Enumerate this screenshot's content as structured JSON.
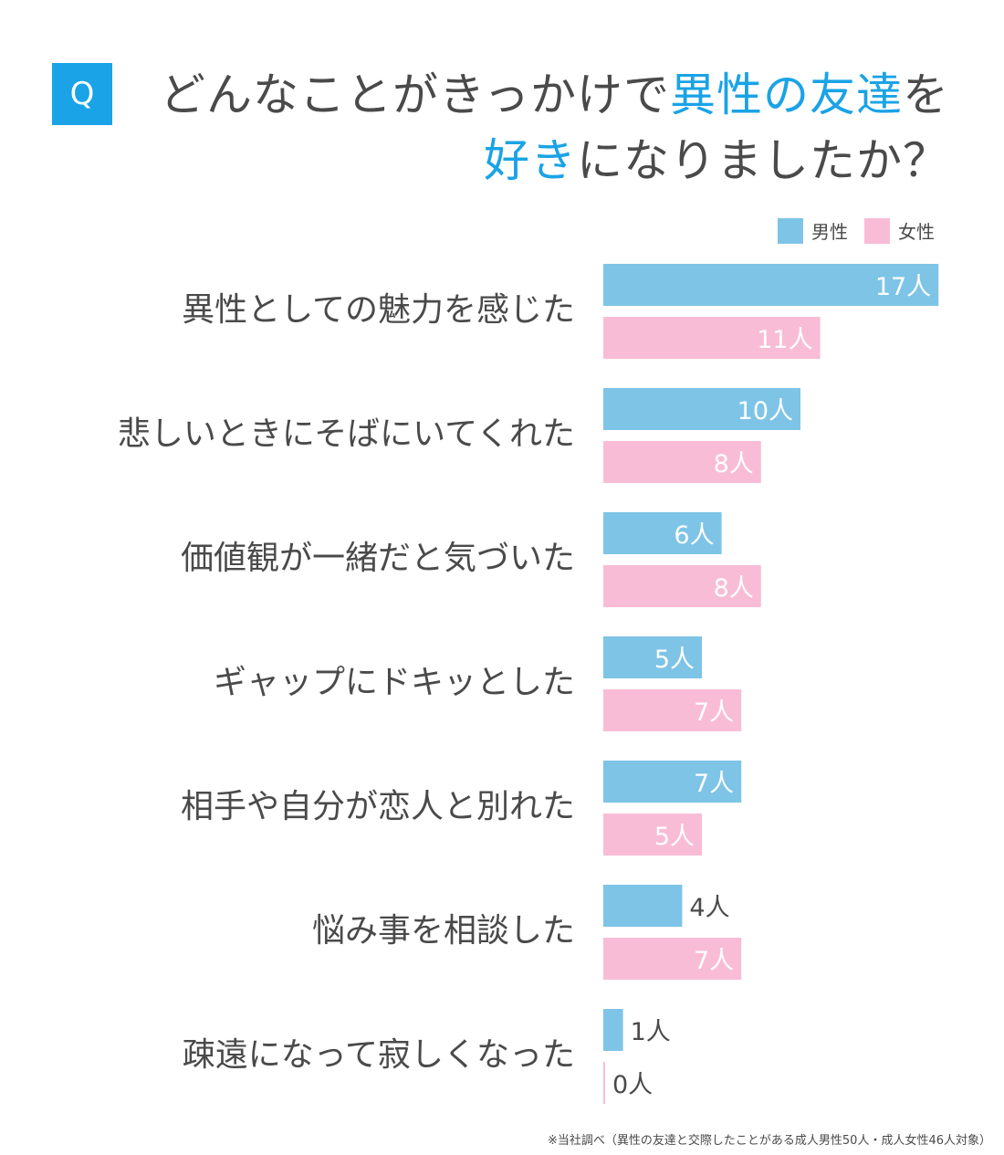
{
  "title": {
    "badge": "Q",
    "line1_plain": "どんなことがきっかけで",
    "line1_highlight": "異性の友達",
    "line1_end": "を",
    "line2_highlight": "好き",
    "line2_plain": "になりましたか？",
    "highlight_color": "#1aa3e6"
  },
  "chart_data": {
    "type": "bar",
    "orientation": "horizontal",
    "categories": [
      "異性としての魅力を感じた",
      "悲しいときにそばにいてくれた",
      "価値観が一緒だと気づいた",
      "ギャップにドキッとした",
      "相手や自分が恋人と別れた",
      "悩み事を相談した",
      "疎遠になって寂しくなった"
    ],
    "series": [
      {
        "name": "男性",
        "values": [
          17,
          10,
          6,
          5,
          7,
          4,
          1
        ],
        "color": "#7ec4e6"
      },
      {
        "name": "女性",
        "values": [
          11,
          8,
          8,
          7,
          5,
          7,
          0
        ],
        "color": "#f9bcd6"
      }
    ],
    "unit": "人",
    "xlim": [
      0,
      17
    ],
    "legend": "top-right",
    "grid": false
  },
  "footnote": "※当社調べ（異性の友達と交際したことがある成人男性50人・成人女性46人対象）"
}
